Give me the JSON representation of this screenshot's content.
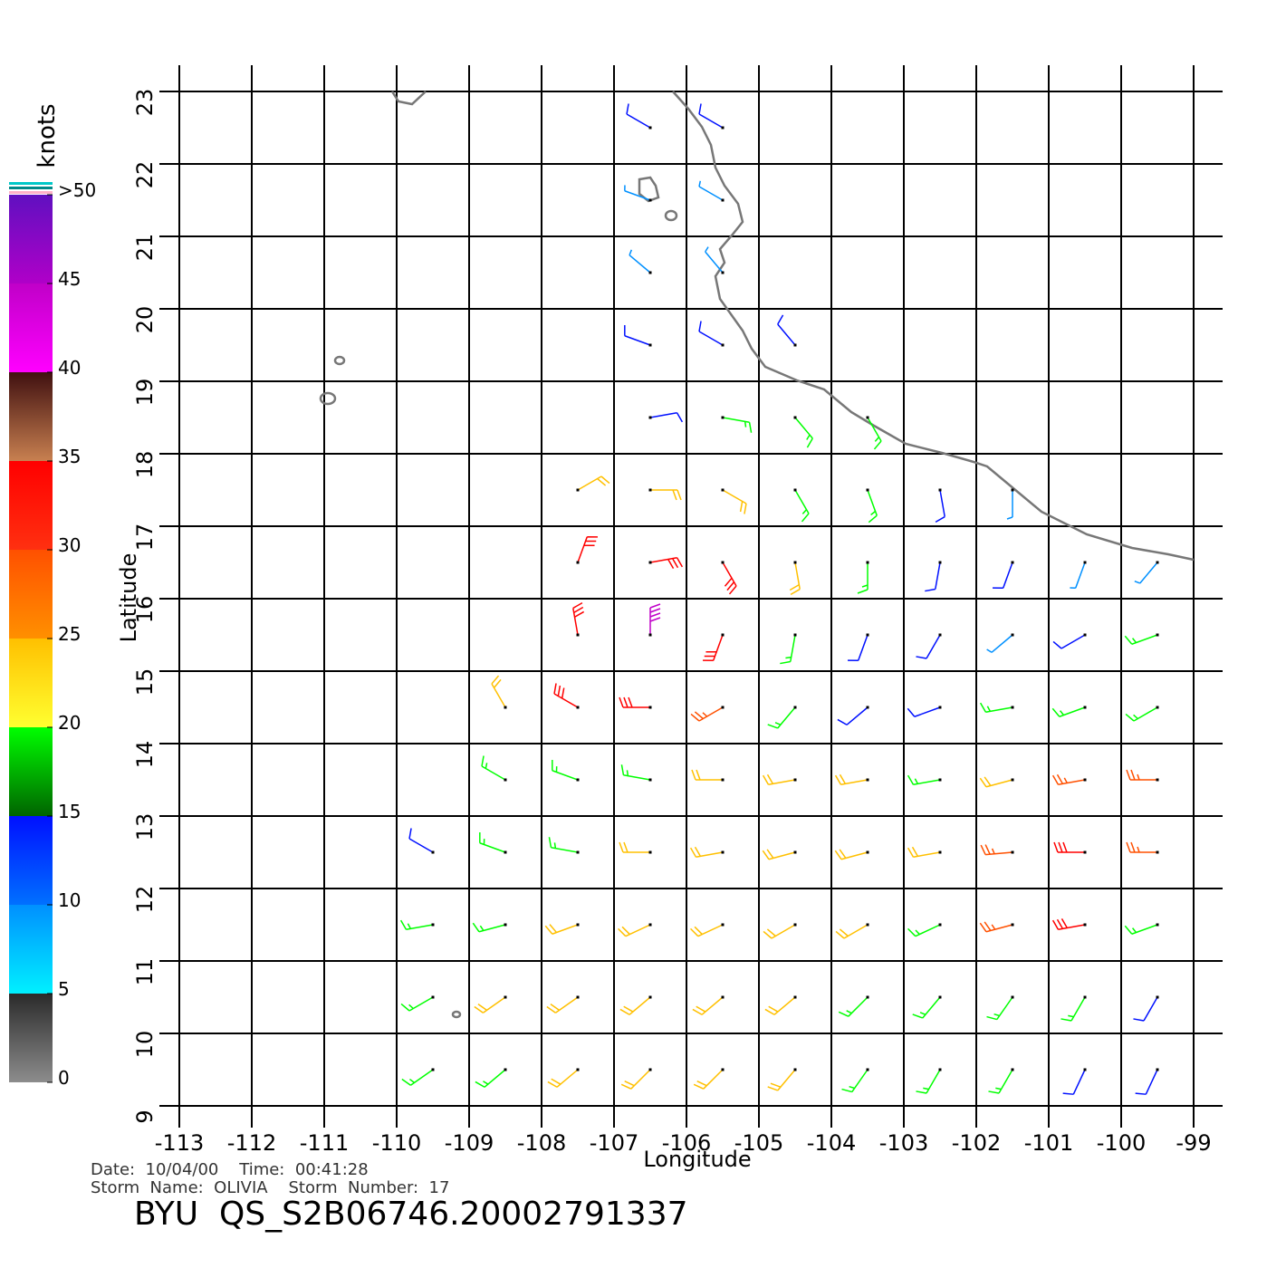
{
  "title": "BYU  QS_S2B06746.20002791337",
  "info": [
    "Date:  10/04/00    Time:  00:41:28",
    "Storm  Name:  OLIVIA    Storm  Number:  17"
  ],
  "xlabel": "Longitude",
  "ylabel": "Latitude",
  "xlim": [
    -113,
    -99
  ],
  "ylim": [
    9,
    23
  ],
  "xticks": [
    -113,
    -112,
    -111,
    -110,
    -109,
    -108,
    -107,
    -106,
    -105,
    -104,
    -103,
    -102,
    -101,
    -100,
    -99
  ],
  "yticks": [
    9,
    10,
    11,
    12,
    13,
    14,
    15,
    16,
    17,
    18,
    19,
    20,
    21,
    22,
    23
  ],
  "colorbar": {
    "unit": "knots",
    "lim": [
      0,
      50
    ],
    "ticks": [
      0,
      5,
      10,
      15,
      20,
      25,
      30,
      35,
      40,
      45,
      {
        "value": 50,
        "label": ">50"
      }
    ],
    "bands": [
      [
        "#8c8c8c",
        "#2a2a2a"
      ],
      [
        "#00f0ff",
        "#0090ff"
      ],
      [
        "#0070ff",
        "#0010ff"
      ],
      [
        "#006400",
        "#00ff00"
      ],
      [
        "#ffff30",
        "#ffc000"
      ],
      [
        "#ff9000",
        "#ff5000"
      ],
      [
        "#ff3010",
        "#ff0000"
      ],
      [
        "#c88050",
        "#401010"
      ],
      [
        "#ff00ff",
        "#c000c8"
      ],
      [
        "#b000c8",
        "#6010c0"
      ]
    ]
  },
  "wind": {
    "rows": [
      {
        "lat": 22.5,
        "lon": [
          -106.5,
          -105.5
        ],
        "speed": [
          12,
          12
        ],
        "dir": [
          300,
          300
        ]
      },
      {
        "lat": 21.5,
        "lon": [
          -106.5,
          -105.5
        ],
        "speed": [
          7,
          8
        ],
        "dir": [
          290,
          300
        ]
      },
      {
        "lat": 20.5,
        "lon": [
          -106.5,
          -105.5
        ],
        "speed": [
          6,
          7
        ],
        "dir": [
          310,
          320
        ]
      },
      {
        "lat": 19.5,
        "lon": [
          -106.5,
          -105.5,
          -104.5
        ],
        "speed": [
          11,
          10,
          11
        ],
        "dir": [
          290,
          300,
          320
        ]
      },
      {
        "lat": 18.5,
        "lon": [
          -106.5,
          -105.5,
          -104.5,
          -103.5
        ],
        "speed": [
          14,
          16,
          17,
          17
        ],
        "dir": [
          80,
          100,
          140,
          150
        ]
      },
      {
        "lat": 17.5,
        "lon": [
          -107.5,
          -106.5,
          -105.5,
          -104.5,
          -103.5,
          -102.5,
          -101.5
        ],
        "speed": [
          22,
          24,
          22,
          18,
          17,
          14,
          9
        ],
        "dir": [
          60,
          90,
          120,
          150,
          160,
          170,
          180
        ]
      },
      {
        "lat": 16.5,
        "lon": [
          -107.5,
          -106.5,
          -105.5,
          -104.5,
          -103.5,
          -102.5,
          -101.5,
          -100.5,
          -99.5
        ],
        "speed": [
          31,
          33,
          30,
          22,
          17,
          13,
          10,
          8,
          8
        ],
        "dir": [
          20,
          80,
          150,
          170,
          180,
          190,
          200,
          200,
          220
        ]
      },
      {
        "lat": 15.5,
        "lon": [
          -107.5,
          -106.5,
          -105.5,
          -104.5,
          -103.5,
          -102.5,
          -101.5,
          -100.5,
          -99.5
        ],
        "speed": [
          30,
          42,
          32,
          17,
          13,
          10,
          9,
          13,
          17
        ],
        "dir": [
          350,
          0,
          200,
          190,
          200,
          210,
          230,
          240,
          250
        ]
      },
      {
        "lat": 14.5,
        "lon": [
          -108.5,
          -107.5,
          -106.5,
          -105.5,
          -104.5,
          -103.5,
          -102.5,
          -101.5,
          -100.5,
          -99.5
        ],
        "speed": [
          22,
          30,
          32,
          27,
          16,
          13,
          12,
          15,
          19,
          16
        ],
        "dir": [
          330,
          300,
          270,
          240,
          220,
          230,
          250,
          260,
          250,
          240
        ]
      },
      {
        "lat": 13.5,
        "lon": [
          -108.5,
          -107.5,
          -106.5,
          -105.5,
          -104.5,
          -103.5,
          -102.5,
          -101.5,
          -100.5,
          -99.5
        ],
        "speed": [
          18,
          19,
          18,
          20,
          22,
          21,
          18,
          22,
          25,
          28
        ],
        "dir": [
          300,
          290,
          280,
          270,
          260,
          260,
          260,
          255,
          260,
          270
        ]
      },
      {
        "lat": 12.5,
        "lon": [
          -109.5,
          -108.5,
          -107.5,
          -106.5,
          -105.5,
          -104.5,
          -103.5,
          -102.5,
          -101.5,
          -100.5,
          -99.5
        ],
        "speed": [
          14,
          16,
          18,
          20,
          22,
          22,
          21,
          24,
          26,
          32,
          28
        ],
        "dir": [
          300,
          290,
          280,
          270,
          260,
          255,
          255,
          260,
          265,
          270,
          270
        ]
      },
      {
        "lat": 11.5,
        "lon": [
          -109.5,
          -108.5,
          -107.5,
          -106.5,
          -105.5,
          -104.5,
          -103.5,
          -102.5,
          -101.5,
          -100.5,
          -99.5
        ],
        "speed": [
          17,
          18,
          20,
          22,
          21,
          22,
          20,
          19,
          27,
          31,
          18
        ],
        "dir": [
          260,
          255,
          250,
          245,
          245,
          240,
          240,
          245,
          255,
          260,
          250
        ]
      },
      {
        "lat": 10.5,
        "lon": [
          -109.5,
          -108.5,
          -107.5,
          -106.5,
          -105.5,
          -104.5,
          -103.5,
          -102.5,
          -101.5,
          -100.5,
          -99.5
        ],
        "speed": [
          18,
          20,
          22,
          21,
          22,
          22,
          19,
          18,
          17,
          16,
          14
        ],
        "dir": [
          240,
          235,
          235,
          230,
          230,
          230,
          225,
          220,
          215,
          210,
          210
        ]
      },
      {
        "lat": 9.5,
        "lon": [
          -109.5,
          -108.5,
          -107.5,
          -106.5,
          -105.5,
          -104.5,
          -103.5,
          -102.5,
          -101.5,
          -100.5,
          -99.5
        ],
        "speed": [
          17,
          19,
          21,
          22,
          21,
          20,
          18,
          16,
          16,
          14,
          13
        ],
        "dir": [
          235,
          230,
          230,
          225,
          225,
          220,
          215,
          210,
          210,
          205,
          205
        ]
      }
    ]
  }
}
